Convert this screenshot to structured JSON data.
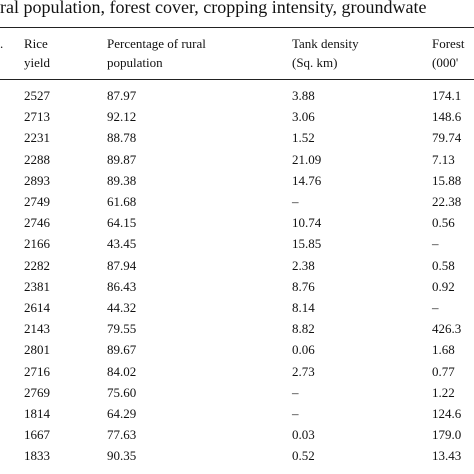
{
  "title": "ral population, forest cover, cropping intensity, groundwate",
  "table": {
    "headers": {
      "c0": ".",
      "c1": [
        "Rice",
        "yield"
      ],
      "c2": [
        "Percentage of rural",
        "population"
      ],
      "c3": [
        "Tank density",
        "(Sq. km)"
      ],
      "c4": [
        "Forest",
        "(000'"
      ]
    },
    "rows": [
      [
        "2527",
        "87.97",
        "3.88",
        "174.1"
      ],
      [
        "2713",
        "92.12",
        "3.06",
        "148.6"
      ],
      [
        "2231",
        "88.78",
        "1.52",
        "79.74"
      ],
      [
        "2288",
        "89.87",
        "21.09",
        "7.13"
      ],
      [
        "2893",
        "89.38",
        "14.76",
        "15.88"
      ],
      [
        "2749",
        "61.68",
        "–",
        "22.38"
      ],
      [
        "2746",
        "64.15",
        "10.74",
        "0.56"
      ],
      [
        "2166",
        "43.45",
        "15.85",
        "–"
      ],
      [
        "2282",
        "87.94",
        "2.38",
        "0.58"
      ],
      [
        "2381",
        "86.43",
        "8.76",
        "0.92"
      ],
      [
        "2614",
        "44.32",
        "8.14",
        "–"
      ],
      [
        "2143",
        "79.55",
        "8.82",
        "426.3"
      ],
      [
        "2801",
        "89.67",
        "0.06",
        "1.68"
      ],
      [
        "2716",
        "84.02",
        "2.73",
        "0.77"
      ],
      [
        "2769",
        "75.60",
        "–",
        "1.22"
      ],
      [
        "1814",
        "64.29",
        "–",
        "124.6"
      ],
      [
        "1667",
        "77.63",
        "0.03",
        "179.0"
      ],
      [
        "1833",
        "90.35",
        "0.52",
        "13.43"
      ]
    ]
  }
}
